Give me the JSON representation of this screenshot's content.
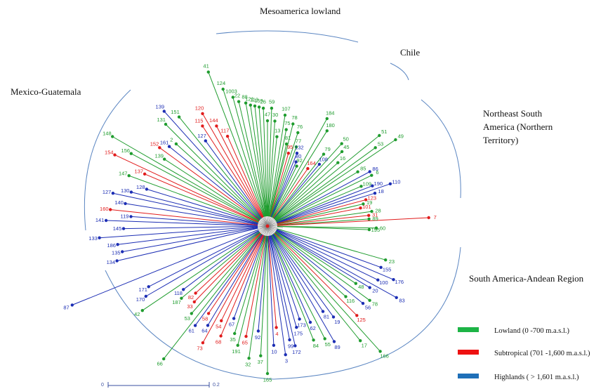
{
  "regions": {
    "mesoamerica": "Mesoamerica lowland",
    "chile": "Chile",
    "mexico": "Mexico-Guatemala",
    "northeast_1": "Northeast South",
    "northeast_2": "America (Northern",
    "northeast_3": "Territory)",
    "andean": "South America-Andean  Region"
  },
  "legend": [
    {
      "label": "Lowland (0 -700 m.a.s.l.)",
      "color": "#1db446"
    },
    {
      "label": "Subtropical (701 -1,600 m.a.s.l.)",
      "color": "#ee1111"
    },
    {
      "label": "Highlands ( > 1,601  m.a.s.l.)",
      "color": "#1f6fb8"
    }
  ],
  "scale": {
    "start": "0",
    "end": "0.2"
  },
  "colors": {
    "green": "#1f9c2e",
    "red": "#e11c1c",
    "blue": "#1c2eb4",
    "arc": "#5b86c2",
    "gray": "#888888"
  },
  "leaves": [
    {
      "a": -111,
      "r": 235,
      "c": "g",
      "t": "41"
    },
    {
      "a": -108,
      "r": 205,
      "c": "g",
      "t": "124"
    },
    {
      "a": -105,
      "r": 190,
      "c": "g",
      "t": "1003"
    },
    {
      "a": -103,
      "r": 182,
      "c": "g",
      "t": "22"
    },
    {
      "a": -100,
      "r": 178,
      "c": "g",
      "t": "88"
    },
    {
      "a": -98,
      "r": 174,
      "c": "g",
      "t": "121"
    },
    {
      "a": -96,
      "r": 172,
      "c": "g",
      "t": "113"
    },
    {
      "a": -94,
      "r": 170,
      "c": "g",
      "t": "159"
    },
    {
      "a": -92,
      "r": 168,
      "c": "g",
      "t": "26"
    },
    {
      "a": -90,
      "r": 150,
      "c": "g",
      "t": "47"
    },
    {
      "a": -88,
      "r": 168,
      "c": "g",
      "t": "59"
    },
    {
      "a": -86,
      "r": 150,
      "c": "g",
      "t": "30"
    },
    {
      "a": -84,
      "r": 128,
      "c": "g",
      "t": "13"
    },
    {
      "a": -81,
      "r": 160,
      "c": "g",
      "t": "107"
    },
    {
      "a": -79,
      "r": 140,
      "c": "g",
      "t": "75"
    },
    {
      "a": -77,
      "r": 120,
      "c": "g",
      "t": "81"
    },
    {
      "a": -76,
      "r": 150,
      "c": "g",
      "t": "78"
    },
    {
      "a": -74,
      "r": 108,
      "c": "r",
      "t": "95"
    },
    {
      "a": -72,
      "r": 140,
      "c": "g",
      "t": "76"
    },
    {
      "a": -70,
      "r": 120,
      "c": "g",
      "t": "77"
    },
    {
      "a": -68,
      "r": 112,
      "c": "b",
      "t": "132"
    },
    {
      "a": -66,
      "r": 100,
      "c": "b",
      "t": "80"
    },
    {
      "a": -64,
      "r": 95,
      "c": "g",
      "t": "92"
    },
    {
      "a": -61,
      "r": 175,
      "c": "g",
      "t": "184"
    },
    {
      "a": -58,
      "r": 160,
      "c": "g",
      "t": "180"
    },
    {
      "a": -55,
      "r": 100,
      "c": "r",
      "t": "164"
    },
    {
      "a": -52,
      "r": 130,
      "c": "g",
      "t": "79"
    },
    {
      "a": -50,
      "r": 115,
      "c": "b",
      "t": "108"
    },
    {
      "a": -48,
      "r": 158,
      "c": "g",
      "t": "50"
    },
    {
      "a": -45,
      "r": 150,
      "c": "g",
      "t": "45"
    },
    {
      "a": -42,
      "r": 135,
      "c": "g",
      "t": "16"
    },
    {
      "a": -39,
      "r": 205,
      "c": "g",
      "t": "51"
    },
    {
      "a": -36,
      "r": 190,
      "c": "g",
      "t": "53"
    },
    {
      "a": -34,
      "r": 220,
      "c": "g",
      "t": "49"
    },
    {
      "a": -31,
      "r": 150,
      "c": "g",
      "t": "85"
    },
    {
      "a": -28,
      "r": 165,
      "c": "b",
      "t": "86"
    },
    {
      "a": -26,
      "r": 165,
      "c": "g",
      "t": "6"
    },
    {
      "a": -23,
      "r": 145,
      "c": "g",
      "t": "109"
    },
    {
      "a": -21,
      "r": 160,
      "c": "b",
      "t": "190"
    },
    {
      "a": -19,
      "r": 185,
      "c": "b",
      "t": "110"
    },
    {
      "a": -17,
      "r": 160,
      "c": "b",
      "t": "18"
    },
    {
      "a": -15,
      "r": 145,
      "c": "r",
      "t": "123"
    },
    {
      "a": -13,
      "r": 140,
      "c": "g",
      "t": "19"
    },
    {
      "a": -11,
      "r": 135,
      "c": "r",
      "t": "101"
    },
    {
      "a": -8,
      "r": 150,
      "c": "g",
      "t": "28"
    },
    {
      "a": -6,
      "r": 145,
      "c": "r",
      "t": "31"
    },
    {
      "a": -4,
      "r": 145,
      "c": "g",
      "t": "89"
    },
    {
      "a": -3,
      "r": 230,
      "c": "r",
      "t": "7"
    },
    {
      "a": 1,
      "r": 155,
      "c": "g",
      "t": "60"
    },
    {
      "a": 2,
      "r": 145,
      "c": "g",
      "t": "195"
    },
    {
      "a": 16,
      "r": 175,
      "c": "g",
      "t": "23"
    },
    {
      "a": 20,
      "r": 172,
      "c": "b",
      "t": "155"
    },
    {
      "a": 23,
      "r": 195,
      "c": "b",
      "t": "176"
    },
    {
      "a": 26,
      "r": 175,
      "c": "b",
      "t": "100"
    },
    {
      "a": 29,
      "r": 210,
      "c": "b",
      "t": "83"
    },
    {
      "a": 31,
      "r": 170,
      "c": "b",
      "t": "20"
    },
    {
      "a": 33,
      "r": 150,
      "c": "g",
      "t": "48"
    },
    {
      "a": 36,
      "r": 180,
      "c": "g",
      "t": "78"
    },
    {
      "a": 39,
      "r": 175,
      "c": "b",
      "t": "56"
    },
    {
      "a": 42,
      "r": 150,
      "c": "g",
      "t": "116"
    },
    {
      "a": 45,
      "r": 180,
      "c": "r",
      "t": "125"
    },
    {
      "a": 48,
      "r": 240,
      "c": "g",
      "t": "166"
    },
    {
      "a": 51,
      "r": 210,
      "c": "g",
      "t": "17"
    },
    {
      "a": 54,
      "r": 160,
      "c": "b",
      "t": "19"
    },
    {
      "a": 57,
      "r": 145,
      "c": "b",
      "t": "81"
    },
    {
      "a": 60,
      "r": 190,
      "c": "b",
      "t": "89"
    },
    {
      "a": 63,
      "r": 180,
      "c": "g",
      "t": "55"
    },
    {
      "a": 66,
      "r": 150,
      "c": "b",
      "t": "62"
    },
    {
      "a": 68,
      "r": 175,
      "c": "g",
      "t": "84"
    },
    {
      "a": 71,
      "r": 140,
      "c": "b",
      "t": "173"
    },
    {
      "a": 74,
      "r": 150,
      "c": "b",
      "t": "175"
    },
    {
      "a": 77,
      "r": 175,
      "c": "b",
      "t": "172"
    },
    {
      "a": 79,
      "r": 165,
      "c": "b",
      "t": "99"
    },
    {
      "a": 82,
      "r": 185,
      "c": "b",
      "t": "3"
    },
    {
      "a": 85,
      "r": 145,
      "c": "r",
      "t": "4"
    },
    {
      "a": 87,
      "r": 170,
      "c": "b",
      "t": "10"
    },
    {
      "a": 90,
      "r": 210,
      "c": "g",
      "t": "165"
    },
    {
      "a": 93,
      "r": 185,
      "c": "g",
      "t": "37"
    },
    {
      "a": 95,
      "r": 150,
      "c": "b",
      "t": "92"
    },
    {
      "a": 98,
      "r": 190,
      "c": "g",
      "t": "32"
    },
    {
      "a": 101,
      "r": 160,
      "c": "r",
      "t": "65"
    },
    {
      "a": 104,
      "r": 175,
      "c": "g",
      "t": "191"
    },
    {
      "a": 107,
      "r": 160,
      "c": "g",
      "t": "35"
    },
    {
      "a": 110,
      "r": 140,
      "c": "b",
      "t": "67"
    },
    {
      "a": 113,
      "r": 170,
      "c": "r",
      "t": "68"
    },
    {
      "a": 116,
      "r": 150,
      "c": "r",
      "t": "54"
    },
    {
      "a": 119,
      "r": 190,
      "c": "r",
      "t": "73"
    },
    {
      "a": 121,
      "r": 165,
      "c": "b",
      "t": "64"
    },
    {
      "a": 124,
      "r": 150,
      "c": "r",
      "t": "58"
    },
    {
      "a": 126,
      "r": 175,
      "c": "b",
      "t": "61"
    },
    {
      "a": 128,
      "r": 240,
      "c": "g",
      "t": "66"
    },
    {
      "a": 131,
      "r": 165,
      "c": "g",
      "t": "53"
    },
    {
      "a": 134,
      "r": 150,
      "c": "r",
      "t": "33"
    },
    {
      "a": 137,
      "r": 140,
      "c": "r",
      "t": "82"
    },
    {
      "a": 140,
      "r": 160,
      "c": "g",
      "t": "187"
    },
    {
      "a": 143,
      "r": 150,
      "c": "b",
      "t": "118"
    },
    {
      "a": 146,
      "r": 215,
      "c": "g",
      "t": "42"
    },
    {
      "a": 150,
      "r": 200,
      "c": "b",
      "t": "170"
    },
    {
      "a": 153,
      "r": 190,
      "c": "b",
      "t": "171"
    },
    {
      "a": 158,
      "r": 300,
      "c": "b",
      "t": "87"
    },
    {
      "a": 167,
      "r": 220,
      "c": "b",
      "t": "134"
    },
    {
      "a": 170,
      "r": 210,
      "c": "b",
      "t": "135"
    },
    {
      "a": 173,
      "r": 215,
      "c": "b",
      "t": "186"
    },
    {
      "a": 176,
      "r": 240,
      "c": "b",
      "t": "133"
    },
    {
      "a": 179,
      "r": 205,
      "c": "b",
      "t": "145"
    },
    {
      "a": 182,
      "r": 230,
      "c": "b",
      "t": "141"
    },
    {
      "a": 184,
      "r": 195,
      "c": "b",
      "t": "119"
    },
    {
      "a": 186,
      "r": 225,
      "c": "r",
      "t": "160"
    },
    {
      "a": 189,
      "r": 205,
      "c": "b",
      "t": "140"
    },
    {
      "a": 192,
      "r": 225,
      "c": "b",
      "t": "127"
    },
    {
      "a": 194,
      "r": 200,
      "c": "b",
      "t": "130"
    },
    {
      "a": 197,
      "r": 180,
      "c": "b",
      "t": "128"
    },
    {
      "a": 200,
      "r": 210,
      "c": "g",
      "t": "147"
    },
    {
      "a": 203,
      "r": 190,
      "c": "r",
      "t": "137"
    },
    {
      "a": 205,
      "r": 240,
      "c": "r",
      "t": "154"
    },
    {
      "a": 208,
      "r": 220,
      "c": "g",
      "t": "156"
    },
    {
      "a": 210,
      "r": 255,
      "c": "g",
      "t": "148"
    },
    {
      "a": 213,
      "r": 175,
      "c": "g",
      "t": "139"
    },
    {
      "a": 216,
      "r": 190,
      "c": "r",
      "t": "152"
    },
    {
      "a": 219,
      "r": 180,
      "c": "b",
      "t": "161"
    },
    {
      "a": 222,
      "r": 175,
      "c": "g",
      "t": "2"
    },
    {
      "a": 225,
      "r": 205,
      "c": "g",
      "t": "131"
    },
    {
      "a": 228,
      "r": 220,
      "c": "b",
      "t": "139"
    },
    {
      "a": 231,
      "r": 200,
      "c": "g",
      "t": "151"
    },
    {
      "a": 234,
      "r": 150,
      "c": "b",
      "t": "127"
    },
    {
      "a": 237,
      "r": 170,
      "c": "r",
      "t": "115"
    },
    {
      "a": 240,
      "r": 185,
      "c": "r",
      "t": "120"
    },
    {
      "a": 243,
      "r": 160,
      "c": "r",
      "t": "144"
    },
    {
      "a": 246,
      "r": 140,
      "c": "r",
      "t": "117"
    }
  ]
}
